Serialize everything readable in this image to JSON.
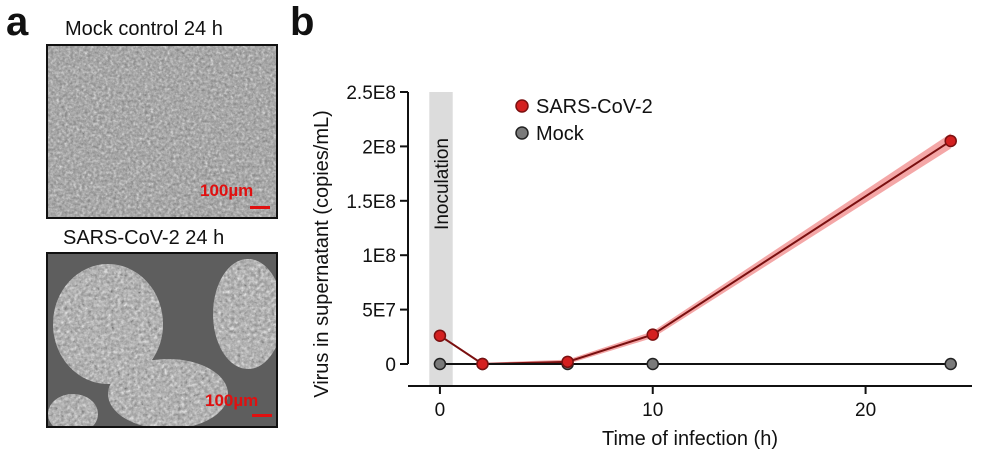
{
  "panel_a": {
    "letter": "a",
    "images": [
      {
        "title": "Mock control 24 h",
        "scale_label": "100µm"
      },
      {
        "title": "SARS-CoV-2 24 h",
        "scale_label": "100µm"
      }
    ]
  },
  "panel_b": {
    "letter": "b"
  },
  "chart_data": {
    "type": "line",
    "xlabel": "Time of infection (h)",
    "ylabel": "Virus in supernatant (copies/mL)",
    "xlim": [
      -1.5,
      25
    ],
    "ylim": [
      0,
      250000000
    ],
    "xticks": [
      0,
      10,
      20
    ],
    "xtick_labels": [
      "0",
      "10",
      "20"
    ],
    "yticks": [
      0,
      50000000,
      100000000,
      150000000,
      200000000,
      250000000
    ],
    "ytick_labels": [
      "0",
      "5E7",
      "1E8",
      "1.5E8",
      "2E8",
      "2.5E8"
    ],
    "shaded_region": {
      "x_start": -0.5,
      "x_end": 0.6,
      "label": "Inoculation",
      "color": "#dcdcdc"
    },
    "legend_position": "top-left",
    "series": [
      {
        "name": "SARS-CoV-2",
        "x": [
          0,
          2,
          6,
          10,
          24
        ],
        "y": [
          26000000,
          0,
          2000000,
          27000000,
          205000000
        ],
        "err": [
          1000000,
          1000000,
          2000000,
          3000000,
          7000000
        ],
        "color": "#d42020",
        "band_color": "#f08a8a"
      },
      {
        "name": "Mock",
        "x": [
          0,
          2,
          6,
          10,
          24
        ],
        "y": [
          0,
          0,
          0,
          0,
          0
        ],
        "color": "#7a7a7a"
      }
    ]
  }
}
